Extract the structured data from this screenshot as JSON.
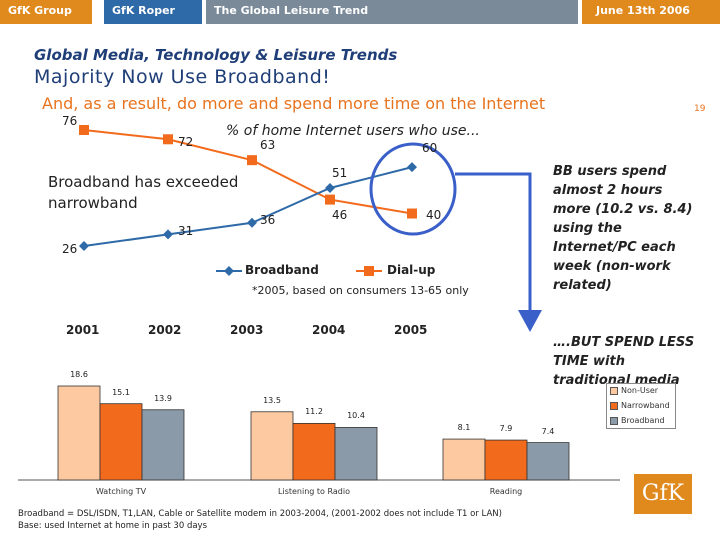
{
  "header": {
    "tabs": [
      {
        "label": "GfK Group",
        "bg": "#e08a1e"
      },
      {
        "label": "GfK Roper",
        "bg": "#2f6aa8"
      },
      {
        "label": "The Global Leisure Trend",
        "bg": "#7a8a99"
      },
      {
        "label": "June 13th 2006",
        "bg": "#e08a1e"
      }
    ]
  },
  "slide": {
    "section_title": "Global Media, Technology & Leisure Trends",
    "title": "Majority Now Use Broadband!",
    "subtitle": "And, as a result, do more and spend more time on the Internet",
    "page_number": "19",
    "chart_caption": "% of home Internet users who use...",
    "broadband_note": "Broadband has exceeded narrowband",
    "sample_note": "*2005, based on consumers 13-65 only",
    "callout_1": "BB users spend almost 2 hours more (10.2 vs. 8.4) using the Internet/PC each week (non-work related)",
    "callout_2": "….BUT SPEND LESS TIME with traditional media",
    "footnote_1": "Broadband = DSL/ISDN, T1,LAN, Cable or Satellite modem in 2003-2004, (2001-2002 does not include T1 or LAN)",
    "footnote_2": "Base: used Internet at home in past 30 days",
    "logo": "GfK"
  },
  "colors": {
    "broadband": "#2f6aa8",
    "dialup": "#f26b1d",
    "orange": "#e8731e",
    "nonuser": "#fdc9a0",
    "narrowband": "#f26b1d",
    "broadband_bar": "#8a9aa8",
    "callout_circle": "#3a5fc8"
  },
  "chart_data": [
    {
      "type": "line",
      "title": "% of home Internet users who use...",
      "categories": [
        "2001",
        "2002",
        "2003",
        "2004",
        "2005"
      ],
      "series": [
        {
          "name": "Broadband",
          "values": [
            26,
            31,
            36,
            51,
            60
          ]
        },
        {
          "name": "Dial-up",
          "values": [
            76,
            72,
            63,
            46,
            40
          ]
        }
      ],
      "ylim": [
        20,
        80
      ]
    },
    {
      "type": "bar",
      "categories": [
        "Watching TV",
        "Listening to Radio",
        "Reading"
      ],
      "series": [
        {
          "name": "Non-User",
          "values": [
            18.6,
            13.5,
            8.1
          ]
        },
        {
          "name": "Narrowband",
          "values": [
            15.1,
            11.2,
            7.9
          ]
        },
        {
          "name": "Broadband",
          "values": [
            13.9,
            10.4,
            7.4
          ]
        }
      ],
      "ylim": [
        0,
        20
      ]
    }
  ]
}
